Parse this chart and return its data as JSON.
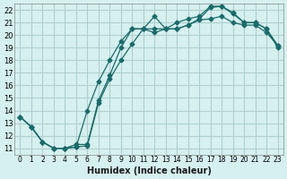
{
  "xlabel": "Humidex (Indice chaleur)",
  "ylabel": "",
  "background_color": "#d6efef",
  "grid_color": "#b0d0d0",
  "line_color": "#1a6b6b",
  "xlim": [
    -0.5,
    23.5
  ],
  "ylim": [
    10.5,
    22.5
  ],
  "xticks": [
    0,
    1,
    2,
    3,
    4,
    5,
    6,
    7,
    8,
    9,
    10,
    11,
    12,
    13,
    14,
    15,
    16,
    17,
    18,
    19,
    20,
    21,
    22,
    23
  ],
  "yticks": [
    11,
    12,
    13,
    14,
    15,
    16,
    17,
    18,
    19,
    20,
    21,
    22
  ],
  "line1_x": [
    0,
    1,
    2,
    3,
    4,
    5,
    6,
    7,
    8,
    9,
    10,
    11,
    12,
    13,
    14,
    15,
    16,
    17,
    18,
    19,
    20,
    21,
    22,
    23
  ],
  "line1_y": [
    13.5,
    12.7,
    11.5,
    11.0,
    11.0,
    11.1,
    11.2,
    14.6,
    16.5,
    18.0,
    19.3,
    20.5,
    20.2,
    20.5,
    20.5,
    20.8,
    21.2,
    21.3,
    21.5,
    21.0,
    20.8,
    20.8,
    20.2,
    19.2
  ],
  "line2_x": [
    0,
    1,
    2,
    3,
    4,
    5,
    6,
    7,
    8,
    9,
    10,
    11,
    12,
    13,
    14,
    15,
    16,
    17,
    18,
    19,
    20,
    21,
    22,
    23
  ],
  "line2_y": [
    13.5,
    12.7,
    11.5,
    11.0,
    11.0,
    11.1,
    14.0,
    16.3,
    18.0,
    19.5,
    20.5,
    20.5,
    21.5,
    20.5,
    20.5,
    20.8,
    21.3,
    22.2,
    22.3,
    21.7,
    21.0,
    21.0,
    20.5,
    19.0
  ],
  "line3_x": [
    0,
    1,
    2,
    3,
    4,
    5,
    6,
    7,
    8,
    9,
    10,
    11,
    12,
    13,
    14,
    15,
    16,
    17,
    18,
    19,
    20,
    21,
    22,
    23
  ],
  "line3_y": [
    13.5,
    12.7,
    11.5,
    11.0,
    11.0,
    11.3,
    11.3,
    14.8,
    16.8,
    19.0,
    20.5,
    20.5,
    20.5,
    20.5,
    21.0,
    21.3,
    21.5,
    22.3,
    22.3,
    21.8,
    21.0,
    21.0,
    20.5,
    19.2
  ]
}
